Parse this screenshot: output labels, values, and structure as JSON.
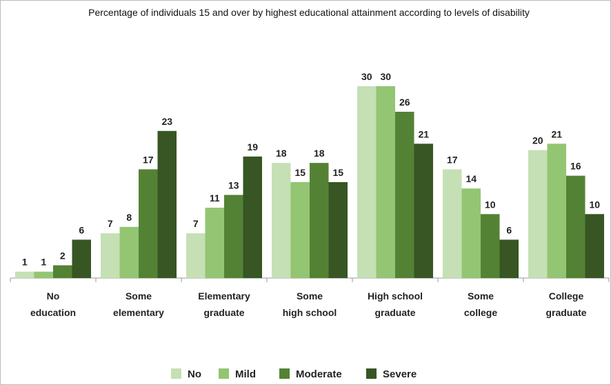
{
  "chart_data": {
    "type": "bar",
    "title": "Percentage of individuals 15 and over by highest educational attainment according to levels of disability",
    "categories": [
      "No\neducation",
      "Some\nelementary",
      "Elementary\ngraduate",
      "Some\nhigh school",
      "High school\ngraduate",
      "Some\ncollege",
      "College\ngraduate"
    ],
    "series": [
      {
        "name": "No",
        "color": "#c5e0b4",
        "values": [
          1,
          7,
          7,
          18,
          30,
          17,
          20
        ]
      },
      {
        "name": "Mild",
        "color": "#93c572",
        "values": [
          1,
          8,
          11,
          15,
          30,
          14,
          21
        ]
      },
      {
        "name": "Moderate",
        "color": "#548235",
        "values": [
          2,
          17,
          13,
          18,
          26,
          10,
          16
        ]
      },
      {
        "name": "Severe",
        "color": "#375623",
        "values": [
          6,
          23,
          19,
          15,
          21,
          6,
          10
        ]
      }
    ],
    "legend": "bottom"
  }
}
